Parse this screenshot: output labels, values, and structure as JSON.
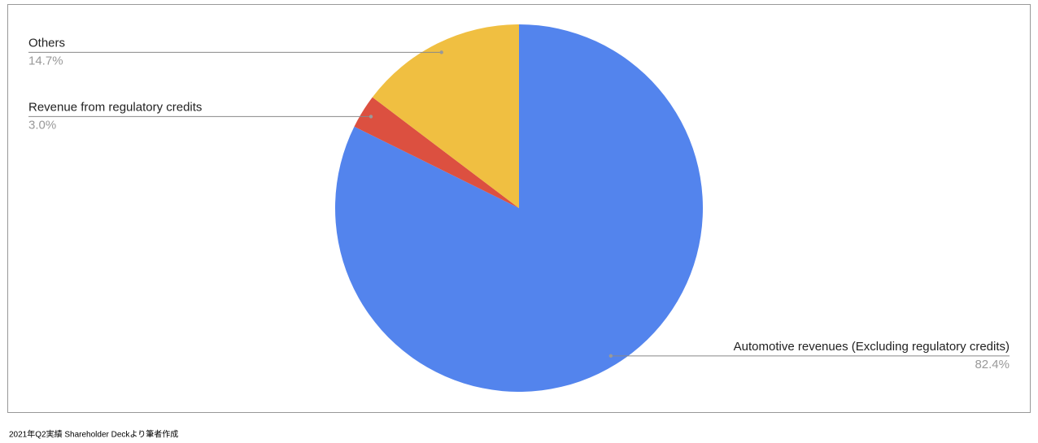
{
  "chart_data": {
    "type": "pie",
    "categories": [
      "Automotive revenues (Excluding regulatory credits)",
      "Revenue from regulatory credits",
      "Others"
    ],
    "values": [
      82.4,
      3.0,
      14.7
    ],
    "value_labels": [
      "82.4%",
      "3.0%",
      "14.7%"
    ],
    "colors": [
      "#5384ed",
      "#dc5040",
      "#f0bf41"
    ],
    "caption": "2021年Q2実績 Shareholder Deckより筆者作成"
  }
}
